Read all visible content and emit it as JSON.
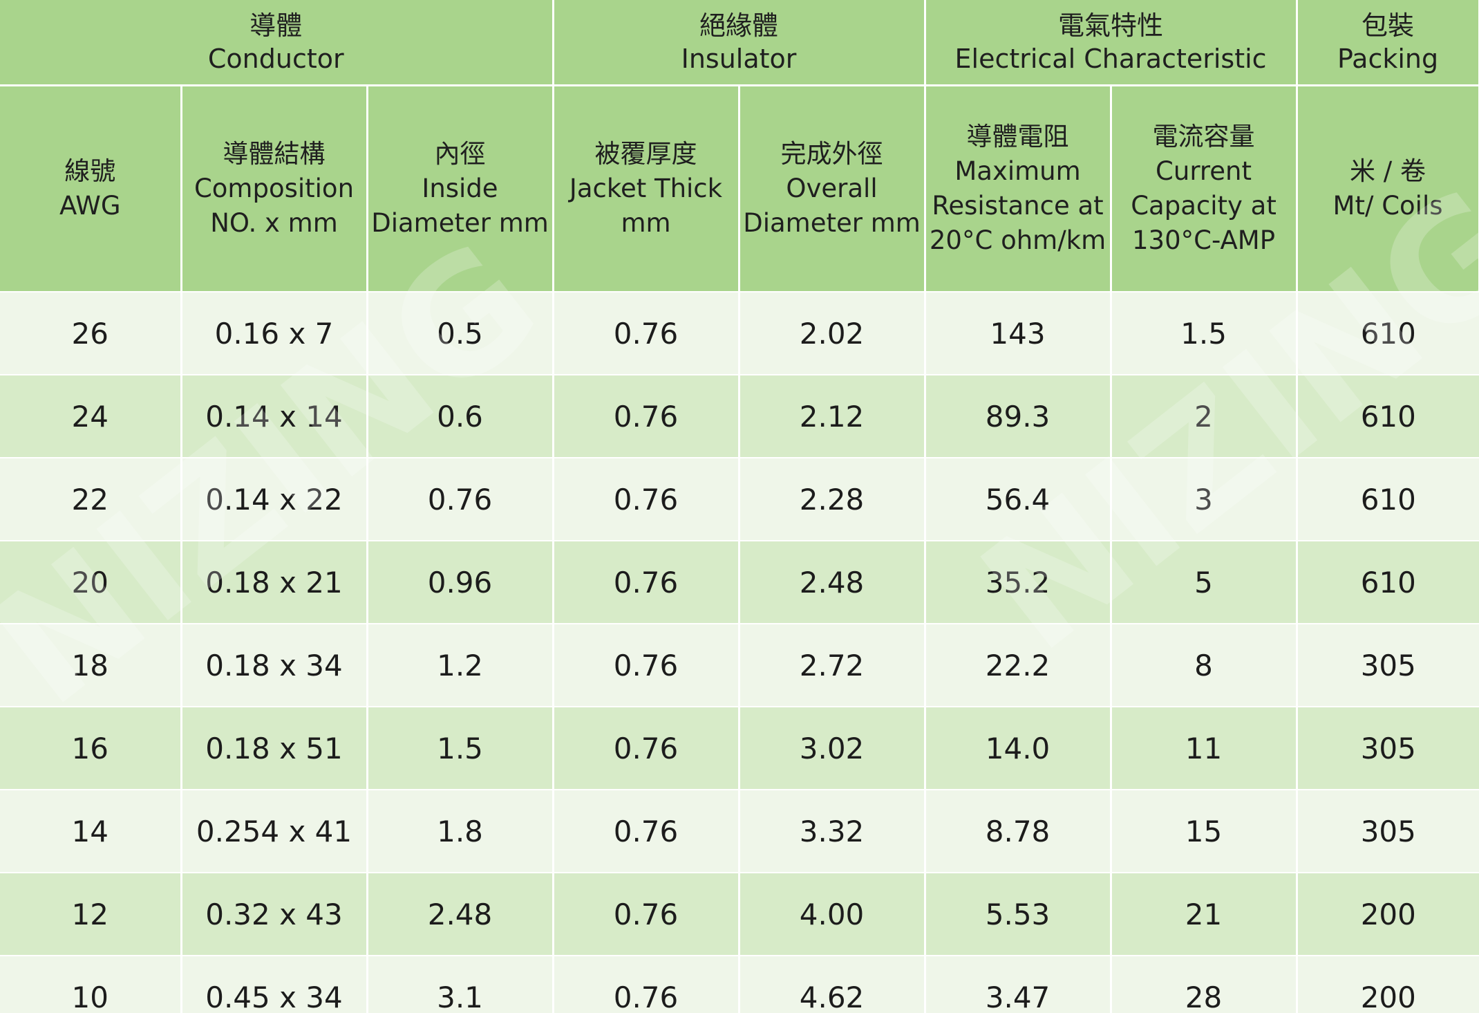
{
  "header": {
    "group_conductor_zh": "導體",
    "group_conductor_en": "Conductor",
    "group_insulator_zh": "絕緣體",
    "group_insulator_en": "Insulator",
    "group_electrical_zh": "電氣特性",
    "group_electrical_en": "Electrical Characteristic",
    "group_packing_zh": "包裝",
    "group_packing_en": "Packing",
    "awg_zh": "線號",
    "awg_en": "AWG",
    "composition_zh": "導體結構",
    "composition_en_1": "Composition",
    "composition_en_2": "NO. x mm",
    "inside_diameter_zh": "內徑",
    "inside_diameter_en_1": "Inside",
    "inside_diameter_en_2": "Diameter mm",
    "jacket_thick_zh": "被覆厚度",
    "jacket_thick_en_1": "Jacket Thick",
    "jacket_thick_en_2": "mm",
    "overall_diameter_zh": "完成外徑",
    "overall_diameter_en_1": "Overall",
    "overall_diameter_en_2": "Diameter mm",
    "resistance_zh": "導體電阻",
    "resistance_en_1": "Maximum",
    "resistance_en_2": "Resistance at",
    "resistance_en_3": "20°C ohm/km",
    "current_zh": "電流容量",
    "current_en_1": "Current",
    "current_en_2": "Capacity at",
    "current_en_3": "130°C-AMP",
    "packing_zh": "米 / 卷",
    "packing_en": "Mt/ Coils"
  },
  "rows": [
    {
      "awg": "26",
      "composition": "0.16 x 7",
      "inside_diameter": "0.5",
      "jacket_thick": "0.76",
      "overall_diameter": "2.02",
      "resistance": "143",
      "current": "1.5",
      "packing": "610"
    },
    {
      "awg": "24",
      "composition": "0.14 x 14",
      "inside_diameter": "0.6",
      "jacket_thick": "0.76",
      "overall_diameter": "2.12",
      "resistance": "89.3",
      "current": "2",
      "packing": "610"
    },
    {
      "awg": "22",
      "composition": "0.14 x 22",
      "inside_diameter": "0.76",
      "jacket_thick": "0.76",
      "overall_diameter": "2.28",
      "resistance": "56.4",
      "current": "3",
      "packing": "610"
    },
    {
      "awg": "20",
      "composition": "0.18 x 21",
      "inside_diameter": "0.96",
      "jacket_thick": "0.76",
      "overall_diameter": "2.48",
      "resistance": "35.2",
      "current": "5",
      "packing": "610"
    },
    {
      "awg": "18",
      "composition": "0.18 x 34",
      "inside_diameter": "1.2",
      "jacket_thick": "0.76",
      "overall_diameter": "2.72",
      "resistance": "22.2",
      "current": "8",
      "packing": "305"
    },
    {
      "awg": "16",
      "composition": "0.18 x 51",
      "inside_diameter": "1.5",
      "jacket_thick": "0.76",
      "overall_diameter": "3.02",
      "resistance": "14.0",
      "current": "11",
      "packing": "305"
    },
    {
      "awg": "14",
      "composition": "0.254 x 41",
      "inside_diameter": "1.8",
      "jacket_thick": "0.76",
      "overall_diameter": "3.32",
      "resistance": "8.78",
      "current": "15",
      "packing": "305"
    },
    {
      "awg": "12",
      "composition": "0.32 x 43",
      "inside_diameter": "2.48",
      "jacket_thick": "0.76",
      "overall_diameter": "4.00",
      "resistance": "5.53",
      "current": "21",
      "packing": "200"
    },
    {
      "awg": "10",
      "composition": "0.45 x 34",
      "inside_diameter": "3.1",
      "jacket_thick": "0.76",
      "overall_diameter": "4.62",
      "resistance": "3.47",
      "current": "28",
      "packing": "200"
    }
  ],
  "watermark": "NIZING",
  "colors": {
    "header_bg": "#a9d48c",
    "row_light": "#eff6e9",
    "row_dark": "#d7ebc8"
  }
}
